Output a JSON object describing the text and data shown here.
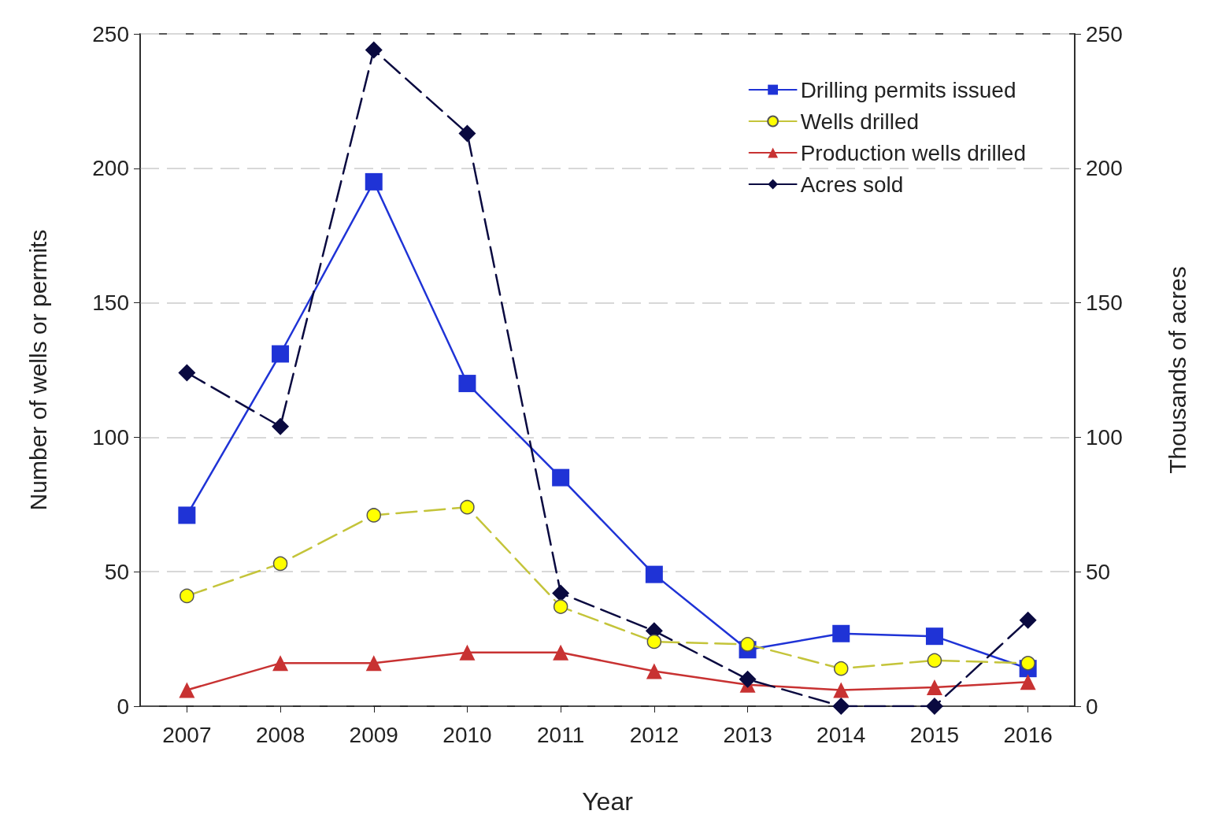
{
  "chart_data": {
    "type": "line",
    "xlabel": "Year",
    "ylabel": "Number of wells or permits",
    "y2label": "Thousands of acres",
    "categories": [
      "2007",
      "2008",
      "2009",
      "2010",
      "2011",
      "2012",
      "2013",
      "2014",
      "2015",
      "2016"
    ],
    "series": [
      {
        "name": "Drilling permits issued",
        "color": "#1f33d6",
        "marker": "square",
        "line_style": "solid",
        "values": [
          71,
          131,
          195,
          120,
          85,
          49,
          21,
          27,
          26,
          14
        ]
      },
      {
        "name": "Wells drilled",
        "color": "#c4c43a",
        "marker": "circle",
        "line_style": "dashed",
        "values": [
          41,
          53,
          71,
          74,
          37,
          24,
          23,
          14,
          17,
          16
        ]
      },
      {
        "name": "Production wells drilled",
        "color": "#c83232",
        "marker": "triangle",
        "line_style": "solid",
        "values": [
          6,
          16,
          16,
          20,
          20,
          13,
          8,
          6,
          7,
          9
        ]
      },
      {
        "name": "Acres sold",
        "color": "#0a0a40",
        "marker": "diamond",
        "line_style": "dashed",
        "axis": "y2",
        "values": [
          124,
          104,
          244,
          213,
          42,
          28,
          10,
          0,
          0,
          32
        ]
      }
    ],
    "ylim": [
      0,
      250
    ],
    "yticks": [
      0,
      50,
      100,
      150,
      200,
      250
    ],
    "y2lim": [
      0,
      250
    ],
    "y2ticks": [
      0,
      50,
      100,
      150,
      200,
      250
    ],
    "grid": "y",
    "legend": "top right"
  }
}
